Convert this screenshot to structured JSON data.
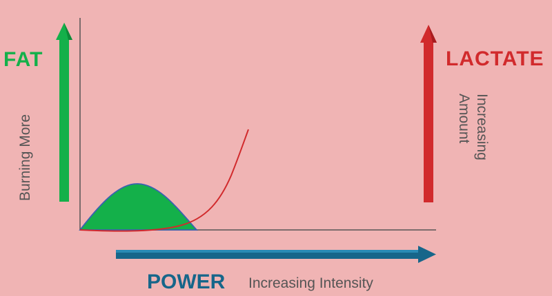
{
  "labels": {
    "fat": "FAT",
    "fat_axis": "Burning More",
    "lactate": "LACTATE",
    "lactate_axis_line1": "Increasing",
    "lactate_axis_line2": "Amount",
    "power": "POWER",
    "power_axis": "Increasing Intensity"
  },
  "colors": {
    "background": "#f0b4b4",
    "fat": "#14b04a",
    "lactate": "#d12a2c",
    "power": "#17668a",
    "axis": "#555555",
    "fat_curve_edge": "#3a62b0"
  }
}
